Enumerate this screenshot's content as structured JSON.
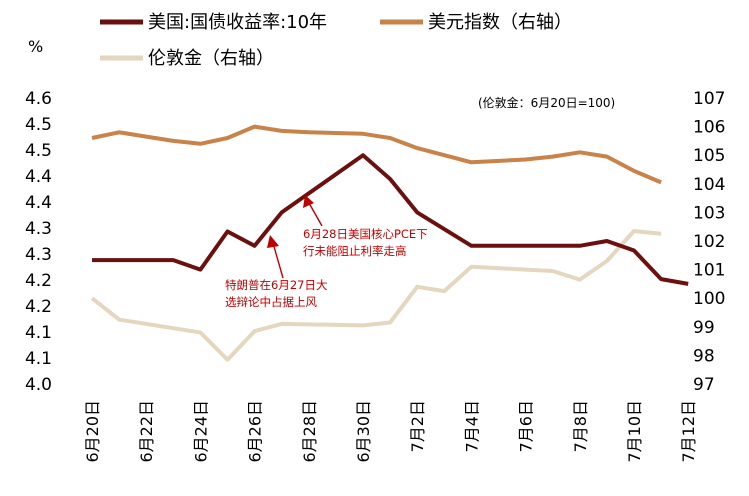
{
  "chart_data": {
    "type": "line",
    "left_axis_unit": "%",
    "right_axis_note": "(伦敦金：6月20日=100)",
    "legend": [
      {
        "label": "美国:国债收益率:10年",
        "color": "#6b0f0f"
      },
      {
        "label": "美元指数（右轴）",
        "color": "#c8824a"
      },
      {
        "label": "伦敦金（右轴）",
        "color": "#e5d6c0"
      }
    ],
    "y_left": {
      "min": 4.0,
      "max": 4.6,
      "tick_labels": [
        "4.0",
        "4.1",
        "4.1",
        "4.2",
        "4.2",
        "4.3",
        "4.3",
        "4.4",
        "4.4",
        "4.5",
        "4.5",
        "4.6"
      ]
    },
    "y_right": {
      "min": 97,
      "max": 107,
      "tick_labels": [
        "97",
        "98",
        "99",
        "100",
        "101",
        "102",
        "103",
        "104",
        "105",
        "106",
        "107"
      ]
    },
    "x_labels": [
      "6月20日",
      "6月22日",
      "6月24日",
      "6月26日",
      "6月28日",
      "6月30日",
      "7月2日",
      "7月4日",
      "7月6日",
      "7月8日",
      "7月10日",
      "7月12日"
    ],
    "series": [
      {
        "name": "美国:国债收益率:10年",
        "axis": "left",
        "color": "#6b0f0f",
        "points": [
          [
            0,
            4.26
          ],
          [
            3,
            4.26
          ],
          [
            4,
            4.24
          ],
          [
            5,
            4.32
          ],
          [
            6,
            4.29
          ],
          [
            7,
            4.36
          ],
          [
            10,
            4.48
          ],
          [
            11,
            4.43
          ],
          [
            12,
            4.36
          ],
          [
            14,
            4.29
          ],
          [
            18,
            4.29
          ],
          [
            19,
            4.3
          ],
          [
            20,
            4.28
          ],
          [
            21,
            4.22
          ],
          [
            22,
            4.21
          ]
        ]
      },
      {
        "name": "美元指数（右轴）",
        "axis": "right",
        "color": "#c8824a",
        "points": [
          [
            0,
            105.6
          ],
          [
            1,
            105.8
          ],
          [
            2,
            105.65
          ],
          [
            3,
            105.5
          ],
          [
            4,
            105.4
          ],
          [
            5,
            105.6
          ],
          [
            6,
            106.0
          ],
          [
            7,
            105.85
          ],
          [
            8,
            105.8
          ],
          [
            10,
            105.75
          ],
          [
            11,
            105.6
          ],
          [
            12,
            105.25
          ],
          [
            13,
            105.0
          ],
          [
            14,
            104.75
          ],
          [
            16,
            104.85
          ],
          [
            17,
            104.95
          ],
          [
            18,
            105.1
          ],
          [
            19,
            104.95
          ],
          [
            20,
            104.45
          ],
          [
            21,
            104.05
          ]
        ]
      },
      {
        "name": "伦敦金（右轴）",
        "axis": "right",
        "color": "#e5d6c0",
        "points": [
          [
            0,
            100.0
          ],
          [
            1,
            99.25
          ],
          [
            2,
            99.1
          ],
          [
            3,
            98.95
          ],
          [
            4,
            98.8
          ],
          [
            5,
            97.85
          ],
          [
            6,
            98.85
          ],
          [
            7,
            99.1
          ],
          [
            10,
            99.05
          ],
          [
            11,
            99.15
          ],
          [
            12,
            100.4
          ],
          [
            13,
            100.25
          ],
          [
            14,
            101.1
          ],
          [
            16,
            101.0
          ],
          [
            17,
            100.95
          ],
          [
            18,
            100.65
          ],
          [
            19,
            101.3
          ],
          [
            20,
            102.35
          ],
          [
            21,
            102.25
          ]
        ]
      }
    ],
    "annotations": [
      {
        "lines": [
          "6月28日美国核心PCE下",
          "行未能阻止利率走高"
        ]
      },
      {
        "lines": [
          "特朗普在6月27日大",
          "选辩论中占据上风"
        ]
      }
    ]
  }
}
